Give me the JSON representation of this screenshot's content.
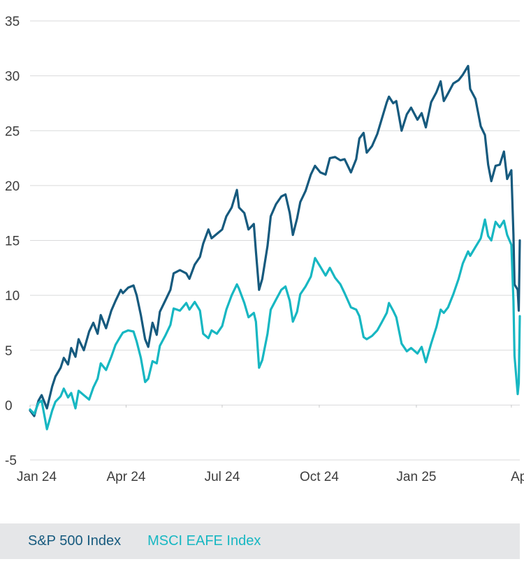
{
  "colors": {
    "sp500": "#165a7e",
    "eafe": "#17b7c2",
    "grid": "#d9dadb",
    "text": "#3d3d3d",
    "legend_bg": "#e5e6e8"
  },
  "legend": {
    "sp500": "S&P 500 Index",
    "eafe": "MSCI EAFE Index"
  },
  "chart_data": {
    "type": "line",
    "x_range": [
      "2024-01-01",
      "2025-04-09"
    ],
    "ylim": [
      -5,
      35
    ],
    "y_ticks": [
      35,
      30,
      25,
      20,
      15,
      10,
      5,
      0,
      -5
    ],
    "x_ticks": [
      {
        "date": "2024-01-01",
        "label": "Jan 24"
      },
      {
        "date": "2024-04-01",
        "label": "Apr 24"
      },
      {
        "date": "2024-07-01",
        "label": "Jul 24"
      },
      {
        "date": "2024-10-01",
        "label": "Oct 24"
      },
      {
        "date": "2025-01-01",
        "label": "Jan 25"
      },
      {
        "date": "2025-04-01",
        "label": "Apr"
      }
    ],
    "grid": true,
    "series": [
      {
        "name": "S&P 500 Index",
        "color": "#165a7e",
        "points": [
          [
            "2024-01-01",
            -0.5
          ],
          [
            "2024-01-05",
            -1.0
          ],
          [
            "2024-01-09",
            0.4
          ],
          [
            "2024-01-12",
            0.9
          ],
          [
            "2024-01-17",
            -0.3
          ],
          [
            "2024-01-22",
            1.7
          ],
          [
            "2024-01-25",
            2.6
          ],
          [
            "2024-01-30",
            3.4
          ],
          [
            "2024-02-02",
            4.3
          ],
          [
            "2024-02-06",
            3.7
          ],
          [
            "2024-02-09",
            5.2
          ],
          [
            "2024-02-13",
            4.4
          ],
          [
            "2024-02-16",
            6.0
          ],
          [
            "2024-02-21",
            5.0
          ],
          [
            "2024-02-26",
            6.7
          ],
          [
            "2024-03-01",
            7.5
          ],
          [
            "2024-03-05",
            6.5
          ],
          [
            "2024-03-08",
            8.2
          ],
          [
            "2024-03-13",
            7.0
          ],
          [
            "2024-03-18",
            8.6
          ],
          [
            "2024-03-22",
            9.5
          ],
          [
            "2024-03-27",
            10.5
          ],
          [
            "2024-03-29",
            10.2
          ],
          [
            "2024-04-03",
            10.7
          ],
          [
            "2024-04-08",
            10.9
          ],
          [
            "2024-04-11",
            10.0
          ],
          [
            "2024-04-15",
            8.2
          ],
          [
            "2024-04-19",
            6.0
          ],
          [
            "2024-04-22",
            5.3
          ],
          [
            "2024-04-26",
            7.5
          ],
          [
            "2024-04-30",
            6.4
          ],
          [
            "2024-05-03",
            8.5
          ],
          [
            "2024-05-08",
            9.5
          ],
          [
            "2024-05-13",
            10.5
          ],
          [
            "2024-05-16",
            12.0
          ],
          [
            "2024-05-22",
            12.3
          ],
          [
            "2024-05-28",
            12.0
          ],
          [
            "2024-05-31",
            11.5
          ],
          [
            "2024-06-05",
            12.8
          ],
          [
            "2024-06-10",
            13.5
          ],
          [
            "2024-06-13",
            14.7
          ],
          [
            "2024-06-18",
            16.0
          ],
          [
            "2024-06-21",
            15.2
          ],
          [
            "2024-06-26",
            15.6
          ],
          [
            "2024-07-01",
            16.0
          ],
          [
            "2024-07-05",
            17.2
          ],
          [
            "2024-07-10",
            18.0
          ],
          [
            "2024-07-15",
            19.6
          ],
          [
            "2024-07-17",
            18.0
          ],
          [
            "2024-07-22",
            17.5
          ],
          [
            "2024-07-26",
            16.0
          ],
          [
            "2024-07-31",
            16.5
          ],
          [
            "2024-08-02",
            14.0
          ],
          [
            "2024-08-05",
            10.5
          ],
          [
            "2024-08-08",
            11.5
          ],
          [
            "2024-08-13",
            14.5
          ],
          [
            "2024-08-16",
            17.2
          ],
          [
            "2024-08-21",
            18.3
          ],
          [
            "2024-08-26",
            19.0
          ],
          [
            "2024-08-30",
            19.2
          ],
          [
            "2024-09-03",
            17.5
          ],
          [
            "2024-09-06",
            15.5
          ],
          [
            "2024-09-10",
            17.0
          ],
          [
            "2024-09-13",
            18.5
          ],
          [
            "2024-09-18",
            19.5
          ],
          [
            "2024-09-23",
            21.0
          ],
          [
            "2024-09-27",
            21.8
          ],
          [
            "2024-10-02",
            21.2
          ],
          [
            "2024-10-07",
            21.0
          ],
          [
            "2024-10-11",
            22.5
          ],
          [
            "2024-10-16",
            22.6
          ],
          [
            "2024-10-21",
            22.3
          ],
          [
            "2024-10-25",
            22.4
          ],
          [
            "2024-10-31",
            21.2
          ],
          [
            "2024-11-05",
            22.4
          ],
          [
            "2024-11-08",
            24.3
          ],
          [
            "2024-11-12",
            24.8
          ],
          [
            "2024-11-15",
            23.0
          ],
          [
            "2024-11-20",
            23.6
          ],
          [
            "2024-11-25",
            24.7
          ],
          [
            "2024-11-29",
            26.0
          ],
          [
            "2024-12-04",
            27.6
          ],
          [
            "2024-12-06",
            28.1
          ],
          [
            "2024-12-10",
            27.5
          ],
          [
            "2024-12-13",
            27.7
          ],
          [
            "2024-12-18",
            25.0
          ],
          [
            "2024-12-23",
            26.5
          ],
          [
            "2024-12-27",
            27.1
          ],
          [
            "2025-01-02",
            26.0
          ],
          [
            "2025-01-06",
            26.6
          ],
          [
            "2025-01-10",
            25.3
          ],
          [
            "2025-01-15",
            27.6
          ],
          [
            "2025-01-20",
            28.5
          ],
          [
            "2025-01-24",
            29.5
          ],
          [
            "2025-01-27",
            27.7
          ],
          [
            "2025-01-31",
            28.4
          ],
          [
            "2025-02-05",
            29.3
          ],
          [
            "2025-02-10",
            29.6
          ],
          [
            "2025-02-14",
            30.1
          ],
          [
            "2025-02-19",
            30.9
          ],
          [
            "2025-02-21",
            28.8
          ],
          [
            "2025-02-26",
            27.9
          ],
          [
            "2025-03-03",
            25.4
          ],
          [
            "2025-03-07",
            24.6
          ],
          [
            "2025-03-10",
            21.9
          ],
          [
            "2025-03-13",
            20.4
          ],
          [
            "2025-03-17",
            21.8
          ],
          [
            "2025-03-21",
            21.9
          ],
          [
            "2025-03-25",
            23.1
          ],
          [
            "2025-03-28",
            20.6
          ],
          [
            "2025-04-01",
            21.4
          ],
          [
            "2025-04-03",
            15.5
          ],
          [
            "2025-04-04",
            11.0
          ],
          [
            "2025-04-07",
            10.5
          ],
          [
            "2025-04-08",
            8.6
          ],
          [
            "2025-04-09",
            15.0
          ]
        ]
      },
      {
        "name": "MSCI EAFE Index",
        "color": "#17b7c2",
        "points": [
          [
            "2024-01-01",
            -0.4
          ],
          [
            "2024-01-05",
            -0.8
          ],
          [
            "2024-01-09",
            0.2
          ],
          [
            "2024-01-12",
            0.4
          ],
          [
            "2024-01-17",
            -2.2
          ],
          [
            "2024-01-22",
            -0.5
          ],
          [
            "2024-01-25",
            0.3
          ],
          [
            "2024-01-30",
            0.8
          ],
          [
            "2024-02-02",
            1.5
          ],
          [
            "2024-02-06",
            0.7
          ],
          [
            "2024-02-09",
            1.1
          ],
          [
            "2024-02-13",
            -0.3
          ],
          [
            "2024-02-16",
            1.3
          ],
          [
            "2024-02-21",
            0.9
          ],
          [
            "2024-02-26",
            0.5
          ],
          [
            "2024-03-01",
            1.6
          ],
          [
            "2024-03-05",
            2.4
          ],
          [
            "2024-03-08",
            3.8
          ],
          [
            "2024-03-13",
            3.2
          ],
          [
            "2024-03-18",
            4.4
          ],
          [
            "2024-03-22",
            5.5
          ],
          [
            "2024-03-27",
            6.3
          ],
          [
            "2024-03-29",
            6.6
          ],
          [
            "2024-04-03",
            6.8
          ],
          [
            "2024-04-08",
            6.7
          ],
          [
            "2024-04-11",
            5.8
          ],
          [
            "2024-04-15",
            4.3
          ],
          [
            "2024-04-19",
            2.1
          ],
          [
            "2024-04-22",
            2.4
          ],
          [
            "2024-04-26",
            4.0
          ],
          [
            "2024-04-30",
            3.8
          ],
          [
            "2024-05-03",
            5.4
          ],
          [
            "2024-05-08",
            6.3
          ],
          [
            "2024-05-13",
            7.3
          ],
          [
            "2024-05-16",
            8.8
          ],
          [
            "2024-05-22",
            8.6
          ],
          [
            "2024-05-28",
            9.3
          ],
          [
            "2024-05-31",
            8.7
          ],
          [
            "2024-06-05",
            9.4
          ],
          [
            "2024-06-10",
            8.6
          ],
          [
            "2024-06-13",
            6.5
          ],
          [
            "2024-06-18",
            6.1
          ],
          [
            "2024-06-21",
            6.8
          ],
          [
            "2024-06-26",
            6.5
          ],
          [
            "2024-07-01",
            7.2
          ],
          [
            "2024-07-05",
            8.7
          ],
          [
            "2024-07-10",
            10.0
          ],
          [
            "2024-07-15",
            11.0
          ],
          [
            "2024-07-17",
            10.6
          ],
          [
            "2024-07-22",
            9.3
          ],
          [
            "2024-07-26",
            8.0
          ],
          [
            "2024-07-31",
            8.4
          ],
          [
            "2024-08-02",
            7.6
          ],
          [
            "2024-08-05",
            3.4
          ],
          [
            "2024-08-08",
            4.1
          ],
          [
            "2024-08-13",
            6.5
          ],
          [
            "2024-08-16",
            8.7
          ],
          [
            "2024-08-21",
            9.6
          ],
          [
            "2024-08-26",
            10.5
          ],
          [
            "2024-08-30",
            10.8
          ],
          [
            "2024-09-03",
            9.5
          ],
          [
            "2024-09-06",
            7.6
          ],
          [
            "2024-09-10",
            8.5
          ],
          [
            "2024-09-13",
            10.1
          ],
          [
            "2024-09-18",
            10.8
          ],
          [
            "2024-09-23",
            11.7
          ],
          [
            "2024-09-27",
            13.4
          ],
          [
            "2024-10-02",
            12.6
          ],
          [
            "2024-10-07",
            11.8
          ],
          [
            "2024-10-11",
            12.5
          ],
          [
            "2024-10-16",
            11.6
          ],
          [
            "2024-10-21",
            11.0
          ],
          [
            "2024-10-25",
            10.2
          ],
          [
            "2024-10-31",
            8.9
          ],
          [
            "2024-11-05",
            8.7
          ],
          [
            "2024-11-08",
            8.1
          ],
          [
            "2024-11-12",
            6.2
          ],
          [
            "2024-11-15",
            6.0
          ],
          [
            "2024-11-20",
            6.3
          ],
          [
            "2024-11-25",
            6.8
          ],
          [
            "2024-11-29",
            7.5
          ],
          [
            "2024-12-04",
            8.4
          ],
          [
            "2024-12-06",
            9.3
          ],
          [
            "2024-12-10",
            8.6
          ],
          [
            "2024-12-13",
            8.0
          ],
          [
            "2024-12-18",
            5.6
          ],
          [
            "2024-12-23",
            4.9
          ],
          [
            "2024-12-27",
            5.2
          ],
          [
            "2025-01-02",
            4.7
          ],
          [
            "2025-01-06",
            5.3
          ],
          [
            "2025-01-10",
            3.9
          ],
          [
            "2025-01-15",
            5.6
          ],
          [
            "2025-01-20",
            7.1
          ],
          [
            "2025-01-24",
            8.7
          ],
          [
            "2025-01-27",
            8.4
          ],
          [
            "2025-01-31",
            8.9
          ],
          [
            "2025-02-05",
            10.1
          ],
          [
            "2025-02-10",
            11.5
          ],
          [
            "2025-02-14",
            12.9
          ],
          [
            "2025-02-19",
            14.0
          ],
          [
            "2025-02-21",
            13.6
          ],
          [
            "2025-02-26",
            14.4
          ],
          [
            "2025-03-03",
            15.2
          ],
          [
            "2025-03-07",
            16.9
          ],
          [
            "2025-03-10",
            15.4
          ],
          [
            "2025-03-13",
            15.0
          ],
          [
            "2025-03-17",
            16.7
          ],
          [
            "2025-03-21",
            16.2
          ],
          [
            "2025-03-25",
            16.8
          ],
          [
            "2025-03-28",
            15.5
          ],
          [
            "2025-04-01",
            14.6
          ],
          [
            "2025-04-03",
            9.5
          ],
          [
            "2025-04-04",
            4.5
          ],
          [
            "2025-04-07",
            1.0
          ],
          [
            "2025-04-08",
            2.0
          ],
          [
            "2025-04-09",
            8.1
          ]
        ]
      }
    ]
  }
}
